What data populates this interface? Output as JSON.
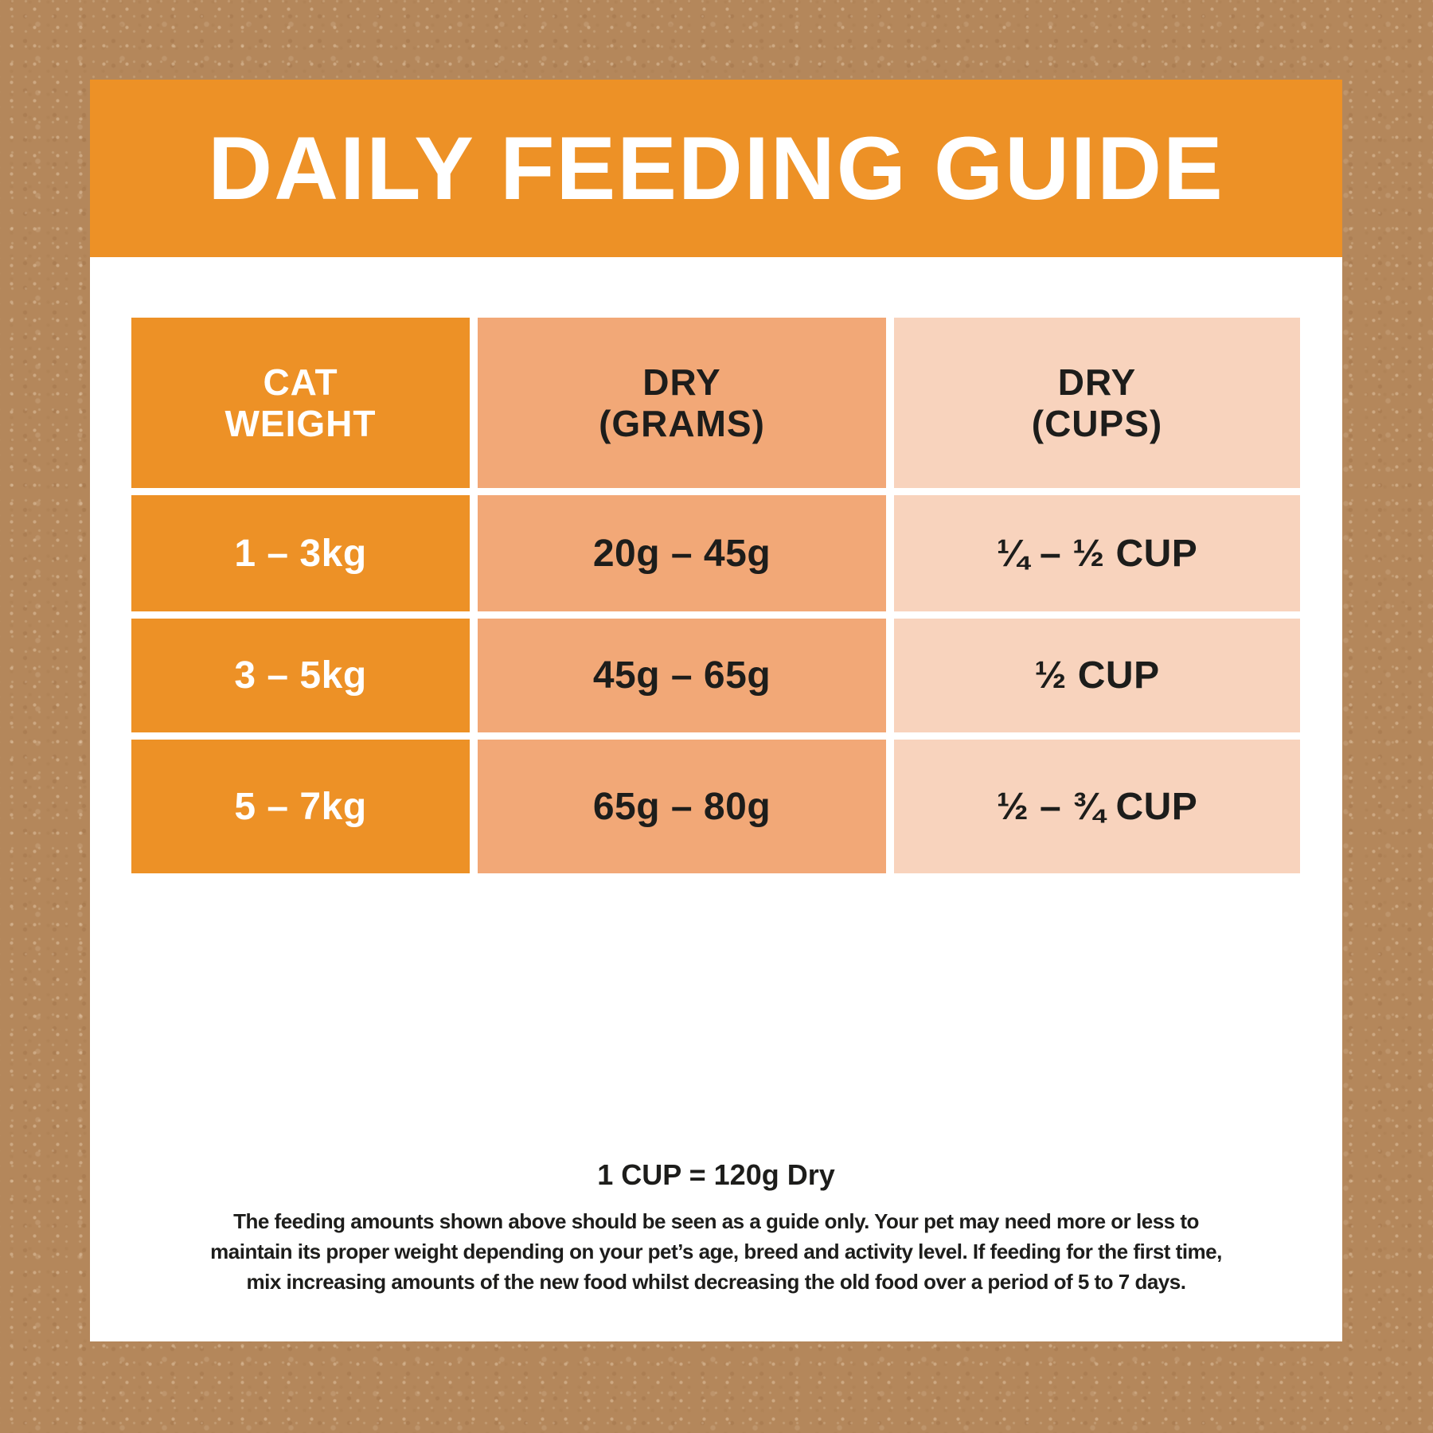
{
  "title": "DAILY FEEDING GUIDE",
  "table": {
    "headers": [
      {
        "line1": "CAT",
        "line2": "WEIGHT"
      },
      {
        "line1": "DRY",
        "line2": "(GRAMS)"
      },
      {
        "line1": "DRY",
        "line2": "(CUPS)"
      }
    ],
    "rows": [
      {
        "weight": "1 – 3kg",
        "grams": "20g – 45g",
        "cups": "¼ – ½ CUP"
      },
      {
        "weight": "3 – 5kg",
        "grams": "45g – 65g",
        "cups": "½ CUP"
      },
      {
        "weight": "5 – 7kg",
        "grams": "65g – 80g",
        "cups": "½ – ¾ CUP"
      }
    ]
  },
  "footer": {
    "cup_note": "1 CUP = 120g Dry",
    "disclaimer_lines": [
      "The feeding amounts shown above should be seen as a guide only. Your pet may need more or less to",
      "maintain its proper weight depending on your pet’s age, breed and activity level. If feeding for the first time,",
      "mix increasing amounts of the new food whilst decreasing the old food over a period of 5 to 7 days."
    ]
  },
  "chart_data": {
    "type": "table",
    "title": "DAILY FEEDING GUIDE",
    "columns": [
      "CAT WEIGHT",
      "DRY (GRAMS)",
      "DRY (CUPS)"
    ],
    "rows": [
      [
        "1 – 3kg",
        "20g – 45g",
        "¼ – ½ CUP"
      ],
      [
        "3 – 5kg",
        "45g – 65g",
        "½ CUP"
      ],
      [
        "5 – 7kg",
        "65g – 80g",
        "½ – ¾ CUP"
      ]
    ],
    "note": "1 CUP = 120g Dry"
  },
  "colors": {
    "background_brown": "#b4875b",
    "card_white": "#ffffff",
    "banner_orange": "#ed9126",
    "col_grams": "#f2a877",
    "col_cups": "#f8d3bd",
    "text_dark": "#1d1d1b"
  }
}
